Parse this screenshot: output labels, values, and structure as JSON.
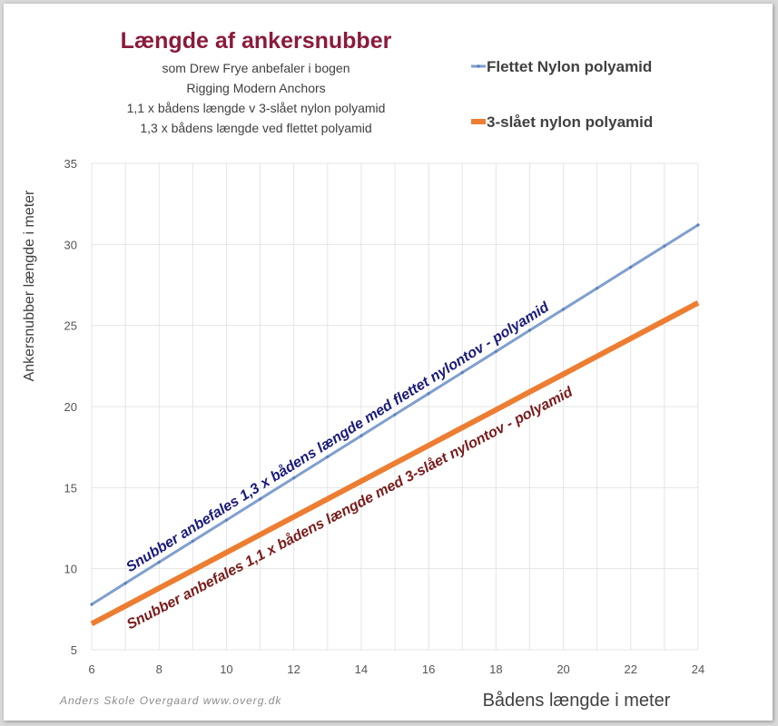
{
  "chart_data": {
    "type": "line",
    "title": "Længde af ankersnubber",
    "subtitle_lines": [
      "som Drew Frye anbefaler  i bogen",
      "Rigging  Modern Anchors",
      "1,1 x bådens længde v 3-slået nylon polyamid",
      "1,3 x bådens længde ved flettet polyamid"
    ],
    "xlabel": "Bådens længde i meter",
    "ylabel": "Ankersnubber længde i meter",
    "xlim": [
      6,
      24
    ],
    "ylim": [
      5,
      35
    ],
    "x_ticks": [
      "6",
      "8",
      "10",
      "12",
      "14",
      "16",
      "18",
      "20",
      "22",
      "24"
    ],
    "y_ticks": [
      "5",
      "10",
      "15",
      "20",
      "25",
      "30",
      "35"
    ],
    "grid": true,
    "legend_position": "top-right",
    "series": [
      {
        "name": "Flettet Nylon polyamid",
        "color": "#7f9fcf",
        "x": [
          6,
          7,
          8,
          9,
          10,
          11,
          12,
          13,
          14,
          15,
          16,
          17,
          18,
          19,
          20,
          21,
          22,
          23,
          24
        ],
        "values": [
          7.8,
          9.1,
          10.4,
          11.7,
          13.0,
          14.3,
          15.6,
          16.9,
          18.2,
          19.5,
          20.8,
          22.1,
          23.4,
          24.7,
          26.0,
          27.3,
          28.6,
          29.9,
          31.2
        ],
        "annotation": "Snubber anbefales 1,3 x bådens længde med flettet nylontov - polyamid",
        "annotation_color": "#1a1a7a"
      },
      {
        "name": "3-slået nylon polyamid",
        "color": "#ed7d31",
        "x": [
          6,
          7,
          8,
          9,
          10,
          11,
          12,
          13,
          14,
          15,
          16,
          17,
          18,
          19,
          20,
          21,
          22,
          23,
          24
        ],
        "values": [
          6.6,
          7.7,
          8.8,
          9.9,
          11.0,
          12.1,
          13.2,
          14.3,
          15.4,
          16.5,
          17.6,
          18.7,
          19.8,
          20.9,
          22.0,
          23.1,
          24.2,
          25.3,
          26.4
        ],
        "annotation": "Snubber anbefales 1,1 x bådens længde med 3-slået nylontov - polyamid",
        "annotation_color": "#7a1a1a"
      }
    ]
  },
  "colors": {
    "title": "#8b1a3a",
    "grid": "#e4e4e4",
    "tick_text": "#555555",
    "axis_label": "#404040"
  },
  "credit": "Anders Skole Overgaard www.overg.dk"
}
